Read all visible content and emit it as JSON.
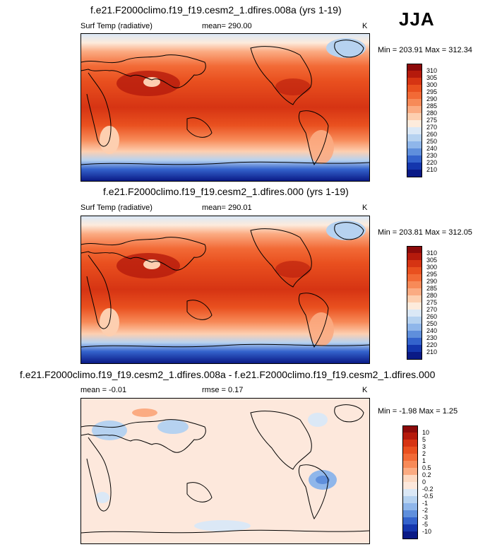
{
  "season": "JJA",
  "panels": [
    {
      "title": "f.e21.F2000climo.f19_f19.cesm2_1.dfires.008a (yrs 1-19)",
      "left_label": "Surf Temp (radiative)",
      "center_label": "mean= 290.00",
      "units": "K",
      "minmax": "Min = 203.91 Max = 312.34"
    },
    {
      "title": "f.e21.F2000climo.f19_f19.cesm2_1.dfires.000 (yrs 1-19)",
      "left_label": "Surf Temp (radiative)",
      "center_label": "mean= 290.01",
      "units": "K",
      "minmax": "Min = 203.81 Max = 312.05"
    },
    {
      "title": "f.e21.F2000climo.f19_f19.cesm2_1.dfires.008a - f.e21.F2000climo.f19_f19.cesm2_1.dfires.000",
      "left_label": "mean =  -0.01",
      "center_label": "rmse =   0.17",
      "units": "K",
      "minmax": "Min = -1.98 Max =  1.25"
    }
  ],
  "chart_data": [
    {
      "type": "heatmap",
      "title": "f.e21.F2000climo.f19_f19.cesm2_1.dfires.008a (yrs 1-19)",
      "variable": "Surf Temp (radiative)",
      "units": "K",
      "mean": 290.0,
      "min": 203.91,
      "max": 312.34,
      "colorbar_levels": [
        310,
        305,
        300,
        295,
        290,
        285,
        280,
        275,
        270,
        260,
        250,
        240,
        230,
        220,
        210
      ],
      "colorbar_colors": [
        "#8c0a0a",
        "#b51a0c",
        "#d63413",
        "#e9501f",
        "#f26a36",
        "#f78a58",
        "#fbab82",
        "#fdcfb0",
        "#fdebdc",
        "#dbe8f6",
        "#b6d2f0",
        "#8fb6ea",
        "#5f8fdc",
        "#3463cc",
        "#1436ad",
        "#0a1a86"
      ]
    },
    {
      "type": "heatmap",
      "title": "f.e21.F2000climo.f19_f19.cesm2_1.dfires.000 (yrs 1-19)",
      "variable": "Surf Temp (radiative)",
      "units": "K",
      "mean": 290.01,
      "min": 203.81,
      "max": 312.05,
      "colorbar_levels": [
        310,
        305,
        300,
        295,
        290,
        285,
        280,
        275,
        270,
        260,
        250,
        240,
        230,
        220,
        210
      ],
      "colorbar_colors": [
        "#8c0a0a",
        "#b51a0c",
        "#d63413",
        "#e9501f",
        "#f26a36",
        "#f78a58",
        "#fbab82",
        "#fdcfb0",
        "#fdebdc",
        "#dbe8f6",
        "#b6d2f0",
        "#8fb6ea",
        "#5f8fdc",
        "#3463cc",
        "#1436ad",
        "#0a1a86"
      ]
    },
    {
      "type": "heatmap",
      "title": "f.e21.F2000climo.f19_f19.cesm2_1.dfires.008a - f.e21.F2000climo.f19_f19.cesm2_1.dfires.000",
      "variable": "difference",
      "units": "K",
      "mean": -0.01,
      "rmse": 0.17,
      "min": -1.98,
      "max": 1.25,
      "colorbar_levels": [
        "10",
        "5",
        "3",
        "2",
        "1",
        "0.5",
        "0.2",
        "0",
        "-0.2",
        "-0.5",
        "-1",
        "-2",
        "-3",
        "-5",
        "-10"
      ],
      "colorbar_colors": [
        "#8c0a0a",
        "#b51a0c",
        "#d63413",
        "#e9501f",
        "#f26a36",
        "#f78a58",
        "#fbab82",
        "#fdd9c2",
        "#fde8dc",
        "#dbe8f6",
        "#b6d2f0",
        "#8fb6ea",
        "#5f8fdc",
        "#3463cc",
        "#1436ad",
        "#0a1a86"
      ]
    }
  ]
}
